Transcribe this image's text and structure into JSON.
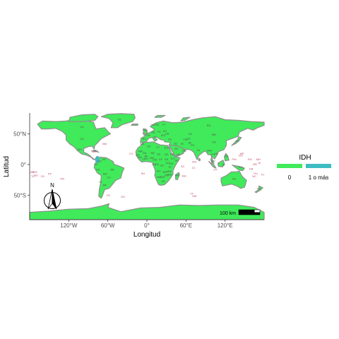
{
  "axes": {
    "xlabel": "Longitud",
    "ylabel": "Latitud",
    "x_ticks": [
      "120°W",
      "60°W",
      "0°",
      "60°E",
      "120°E"
    ],
    "x_tick_values": [
      -120,
      -60,
      0,
      60,
      120
    ],
    "y_ticks": [
      "50°N",
      "0°",
      "50°S"
    ],
    "y_tick_values": [
      50,
      0,
      -50
    ],
    "xlim": [
      -180,
      180
    ],
    "ylim": [
      -90,
      84
    ]
  },
  "legend": {
    "title": "IDH",
    "placement": "right",
    "items": [
      {
        "label": "0",
        "color": "#40ea5a"
      },
      {
        "label": "1 o más",
        "color": "#3dbdc2"
      }
    ]
  },
  "scale_bar": {
    "label": "100 km"
  },
  "north_arrow": {
    "label": "N"
  },
  "colors": {
    "land": "#40ea5a",
    "highlight": "#3dbdc2",
    "border": "#8f8f8f",
    "label_pink": "#c0506a"
  },
  "chart_data": {
    "type": "choropleth",
    "variable": "IDH",
    "classes": [
      "0",
      "1 o más"
    ],
    "highlighted_regions": [
      {
        "label": "",
        "lon": -76,
        "lat": 8,
        "class": "1 o más"
      }
    ],
    "country_labels": [
      {
        "text": "CA",
        "lon": -100,
        "lat": 60
      },
      {
        "text": "US",
        "lon": -100,
        "lat": 40
      },
      {
        "text": "MX",
        "lon": -103,
        "lat": 23
      },
      {
        "text": "BR",
        "lon": -53,
        "lat": -10
      },
      {
        "text": "AR",
        "lon": -65,
        "lat": -35
      },
      {
        "text": "PE",
        "lon": -75,
        "lat": -10
      },
      {
        "text": "CO",
        "lon": -73,
        "lat": 4
      },
      {
        "text": "VE",
        "lon": -66,
        "lat": 7
      },
      {
        "text": "BO",
        "lon": -64,
        "lat": -17
      },
      {
        "text": "CL",
        "lon": -71,
        "lat": -30
      },
      {
        "text": "GL",
        "lon": -42,
        "lat": 72
      },
      {
        "text": "RU",
        "lon": 95,
        "lat": 62
      },
      {
        "text": "KZ",
        "lon": 67,
        "lat": 48
      },
      {
        "text": "CN",
        "lon": 103,
        "lat": 35
      },
      {
        "text": "MN",
        "lon": 103,
        "lat": 47
      },
      {
        "text": "IN",
        "lon": 79,
        "lat": 22
      },
      {
        "text": "IR",
        "lon": 54,
        "lat": 32
      },
      {
        "text": "SA",
        "lon": 45,
        "lat": 24
      },
      {
        "text": "TR",
        "lon": 35,
        "lat": 39
      },
      {
        "text": "DZ",
        "lon": 3,
        "lat": 28
      },
      {
        "text": "LY",
        "lon": 17,
        "lat": 27
      },
      {
        "text": "EG",
        "lon": 30,
        "lat": 26
      },
      {
        "text": "SD",
        "lon": 30,
        "lat": 15
      },
      {
        "text": "ML",
        "lon": -3,
        "lat": 17
      },
      {
        "text": "NE",
        "lon": 9,
        "lat": 17
      },
      {
        "text": "TD",
        "lon": 18,
        "lat": 15
      },
      {
        "text": "NG",
        "lon": 8,
        "lat": 9
      },
      {
        "text": "ET",
        "lon": 40,
        "lat": 8
      },
      {
        "text": "CD",
        "lon": 23,
        "lat": -3
      },
      {
        "text": "AO",
        "lon": 18,
        "lat": -12
      },
      {
        "text": "ZA",
        "lon": 25,
        "lat": -29
      },
      {
        "text": "TZ",
        "lon": 35,
        "lat": -6
      },
      {
        "text": "MG",
        "lon": 47,
        "lat": -19
      },
      {
        "text": "AU",
        "lon": 134,
        "lat": -25
      },
      {
        "text": "ID",
        "lon": 118,
        "lat": -2
      },
      {
        "text": "PG",
        "lon": 144,
        "lat": -6
      },
      {
        "text": "NZ",
        "lon": 172,
        "lat": -41
      },
      {
        "text": "FR",
        "lon": 2,
        "lat": 46
      },
      {
        "text": "ES",
        "lon": -4,
        "lat": 40
      },
      {
        "text": "DE",
        "lon": 10,
        "lat": 51
      },
      {
        "text": "PL",
        "lon": 19,
        "lat": 52
      },
      {
        "text": "UA",
        "lon": 31,
        "lat": 49
      },
      {
        "text": "SE",
        "lon": 16,
        "lat": 63
      },
      {
        "text": "NO",
        "lon": 10,
        "lat": 63
      },
      {
        "text": "FI",
        "lon": 26,
        "lat": 64
      },
      {
        "text": "JP",
        "lon": 138,
        "lat": 37
      },
      {
        "text": "TH",
        "lon": 101,
        "lat": 15
      },
      {
        "text": "AF",
        "lon": 66,
        "lat": 34
      },
      {
        "text": "PK",
        "lon": 70,
        "lat": 30
      },
      {
        "text": "MA",
        "lon": -7,
        "lat": 32
      },
      {
        "text": "MR",
        "lon": -10,
        "lat": 20
      },
      {
        "text": "SO",
        "lon": 46,
        "lat": 5
      },
      {
        "text": "KE",
        "lon": 38,
        "lat": 0
      },
      {
        "text": "ZM",
        "lon": 27,
        "lat": -14
      },
      {
        "text": "NA",
        "lon": 18,
        "lat": -22
      },
      {
        "text": "BW",
        "lon": 24,
        "lat": -22
      },
      {
        "text": "MZ",
        "lon": 35,
        "lat": -18
      },
      {
        "text": "CM",
        "lon": 12,
        "lat": 6
      },
      {
        "text": "GH",
        "lon": -1,
        "lat": 8
      },
      {
        "text": "PY",
        "lon": -58,
        "lat": -23
      },
      {
        "text": "EC",
        "lon": -78,
        "lat": -1
      },
      {
        "text": "CU",
        "lon": -79,
        "lat": 21
      },
      {
        "text": "IQ",
        "lon": 44,
        "lat": 33
      },
      {
        "text": "YE",
        "lon": 48,
        "lat": 15
      },
      {
        "text": "OM",
        "lon": 57,
        "lat": 21
      },
      {
        "text": "UZ",
        "lon": 64,
        "lat": 41
      },
      {
        "text": "TM",
        "lon": 59,
        "lat": 39
      },
      {
        "text": "MM",
        "lon": 96,
        "lat": 21
      },
      {
        "text": "VN",
        "lon": 106,
        "lat": 16
      },
      {
        "text": "PH",
        "lon": 122,
        "lat": 12
      },
      {
        "text": "MY",
        "lon": 102,
        "lat": 4
      },
      {
        "text": "GB",
        "lon": -2,
        "lat": 54
      },
      {
        "text": "IT",
        "lon": 12,
        "lat": 43
      },
      {
        "text": "RO",
        "lon": 25,
        "lat": 46
      },
      {
        "text": "BY",
        "lon": 28,
        "lat": 53
      },
      {
        "text": "GN",
        "lon": -11,
        "lat": 10
      },
      {
        "text": "CF",
        "lon": 21,
        "lat": 7
      },
      {
        "text": "CG",
        "lon": 15,
        "lat": -1
      },
      {
        "text": "GA",
        "lon": 11,
        "lat": -1
      },
      {
        "text": "SS",
        "lon": 30,
        "lat": 7
      },
      {
        "text": "ER",
        "lon": 39,
        "lat": 15
      },
      {
        "text": "UG",
        "lon": 32,
        "lat": 1
      },
      {
        "text": "MW",
        "lon": 34,
        "lat": -13
      },
      {
        "text": "ZW",
        "lon": 30,
        "lat": -19
      },
      {
        "text": "BF",
        "lon": -1,
        "lat": 12
      },
      {
        "text": "SN",
        "lon": -14,
        "lat": 14
      },
      {
        "text": "CI",
        "lon": -5,
        "lat": 7
      }
    ],
    "island_labels": [
      {
        "text": "MV",
        "lon": 73,
        "lat": 3
      },
      {
        "text": "IO",
        "lon": 72,
        "lat": -7
      },
      {
        "text": "SC",
        "lon": 55,
        "lat": -5
      },
      {
        "text": "MU",
        "lon": 57,
        "lat": -20
      },
      {
        "text": "CX",
        "lon": 105,
        "lat": -10
      },
      {
        "text": "PW",
        "lon": 134,
        "lat": 7
      },
      {
        "text": "FM",
        "lon": 158,
        "lat": 7
      },
      {
        "text": "MH",
        "lon": 171,
        "lat": 7
      },
      {
        "text": "KI",
        "lon": 173,
        "lat": 1
      },
      {
        "text": "GU",
        "lon": 144,
        "lat": 13
      },
      {
        "text": "NR",
        "lon": 166,
        "lat": -1
      },
      {
        "text": "SB",
        "lon": 160,
        "lat": -9
      },
      {
        "text": "VU",
        "lon": 167,
        "lat": -16
      },
      {
        "text": "NC",
        "lon": 165,
        "lat": -21
      },
      {
        "text": "FJ",
        "lon": 178,
        "lat": -18
      },
      {
        "text": "WS",
        "lon": -172,
        "lat": -14
      },
      {
        "text": "TO",
        "lon": -175,
        "lat": -21
      },
      {
        "text": "PF",
        "lon": -149,
        "lat": -17
      },
      {
        "text": "CK",
        "lon": -160,
        "lat": -21
      },
      {
        "text": "PN",
        "lon": -130,
        "lat": -25
      },
      {
        "text": "NU",
        "lon": -170,
        "lat": -19
      },
      {
        "text": "UM",
        "lon": -177,
        "lat": -14
      },
      {
        "text": "GS",
        "lon": -37,
        "lat": -54
      },
      {
        "text": "FK",
        "lon": -59,
        "lat": -52
      },
      {
        "text": "TF",
        "lon": 69,
        "lat": -49
      },
      {
        "text": "HM",
        "lon": 73,
        "lat": -53
      },
      {
        "text": "SH",
        "lon": -6,
        "lat": -16
      },
      {
        "text": "CV",
        "lon": -24,
        "lat": 16
      },
      {
        "text": "BM",
        "lon": -65,
        "lat": 32
      },
      {
        "text": "KY",
        "lon": -81,
        "lat": 19
      },
      {
        "text": "MP",
        "lon": 146,
        "lat": 16
      }
    ]
  }
}
